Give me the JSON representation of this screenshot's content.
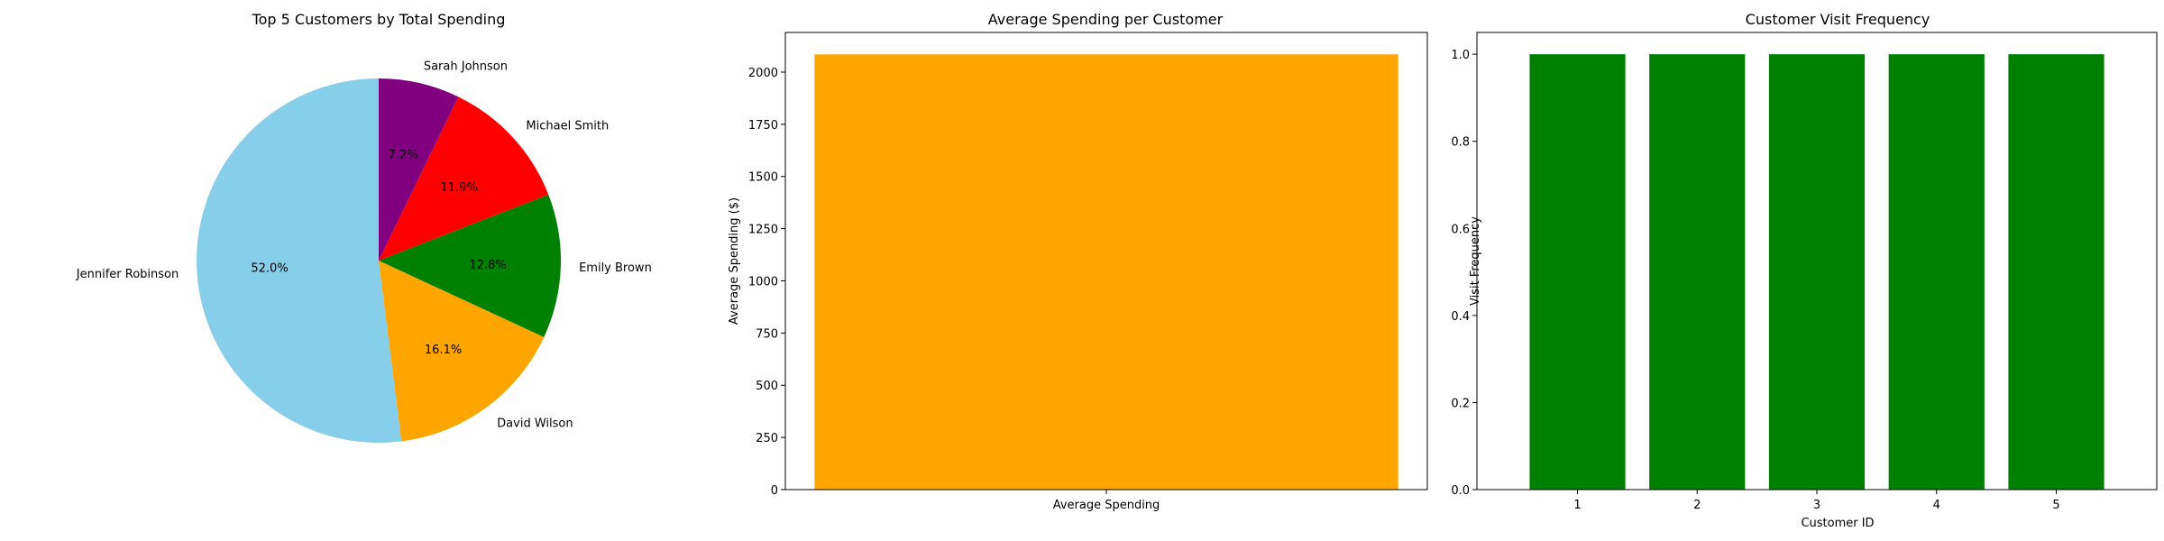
{
  "chart_data": [
    {
      "type": "pie",
      "title": "Top 5 Customers by Total Spending",
      "labels": [
        "Jennifer Robinson",
        "David Wilson",
        "Emily Brown",
        "Michael Smith",
        "Sarah Johnson"
      ],
      "values": [
        52.0,
        16.1,
        12.8,
        11.9,
        7.2
      ],
      "percent_labels": [
        "52.0%",
        "16.1%",
        "12.8%",
        "11.9%",
        "7.2%"
      ],
      "colors": [
        "#87ceeb",
        "#ffa500",
        "#008000",
        "#ff0000",
        "#800080"
      ],
      "start_angle": 90,
      "direction": "counterclockwise"
    },
    {
      "type": "bar",
      "title": "Average Spending per Customer",
      "categories": [
        "Average Spending"
      ],
      "values": [
        2085
      ],
      "xlabel": "",
      "ylabel": "Average Spending ($)",
      "ylim": [
        0,
        2190
      ],
      "yticks": [
        0,
        250,
        500,
        750,
        1000,
        1250,
        1500,
        1750,
        2000
      ],
      "color": "#ffa500"
    },
    {
      "type": "bar",
      "title": "Customer Visit Frequency",
      "categories": [
        "1",
        "2",
        "3",
        "4",
        "5"
      ],
      "values": [
        1.0,
        1.0,
        1.0,
        1.0,
        1.0
      ],
      "xlabel": "Customer ID",
      "ylabel": "Visit Frequency",
      "ylim": [
        0,
        1.05
      ],
      "yticks": [
        "0.0",
        "0.2",
        "0.4",
        "0.6",
        "0.8",
        "1.0"
      ],
      "color": "#008000"
    }
  ]
}
